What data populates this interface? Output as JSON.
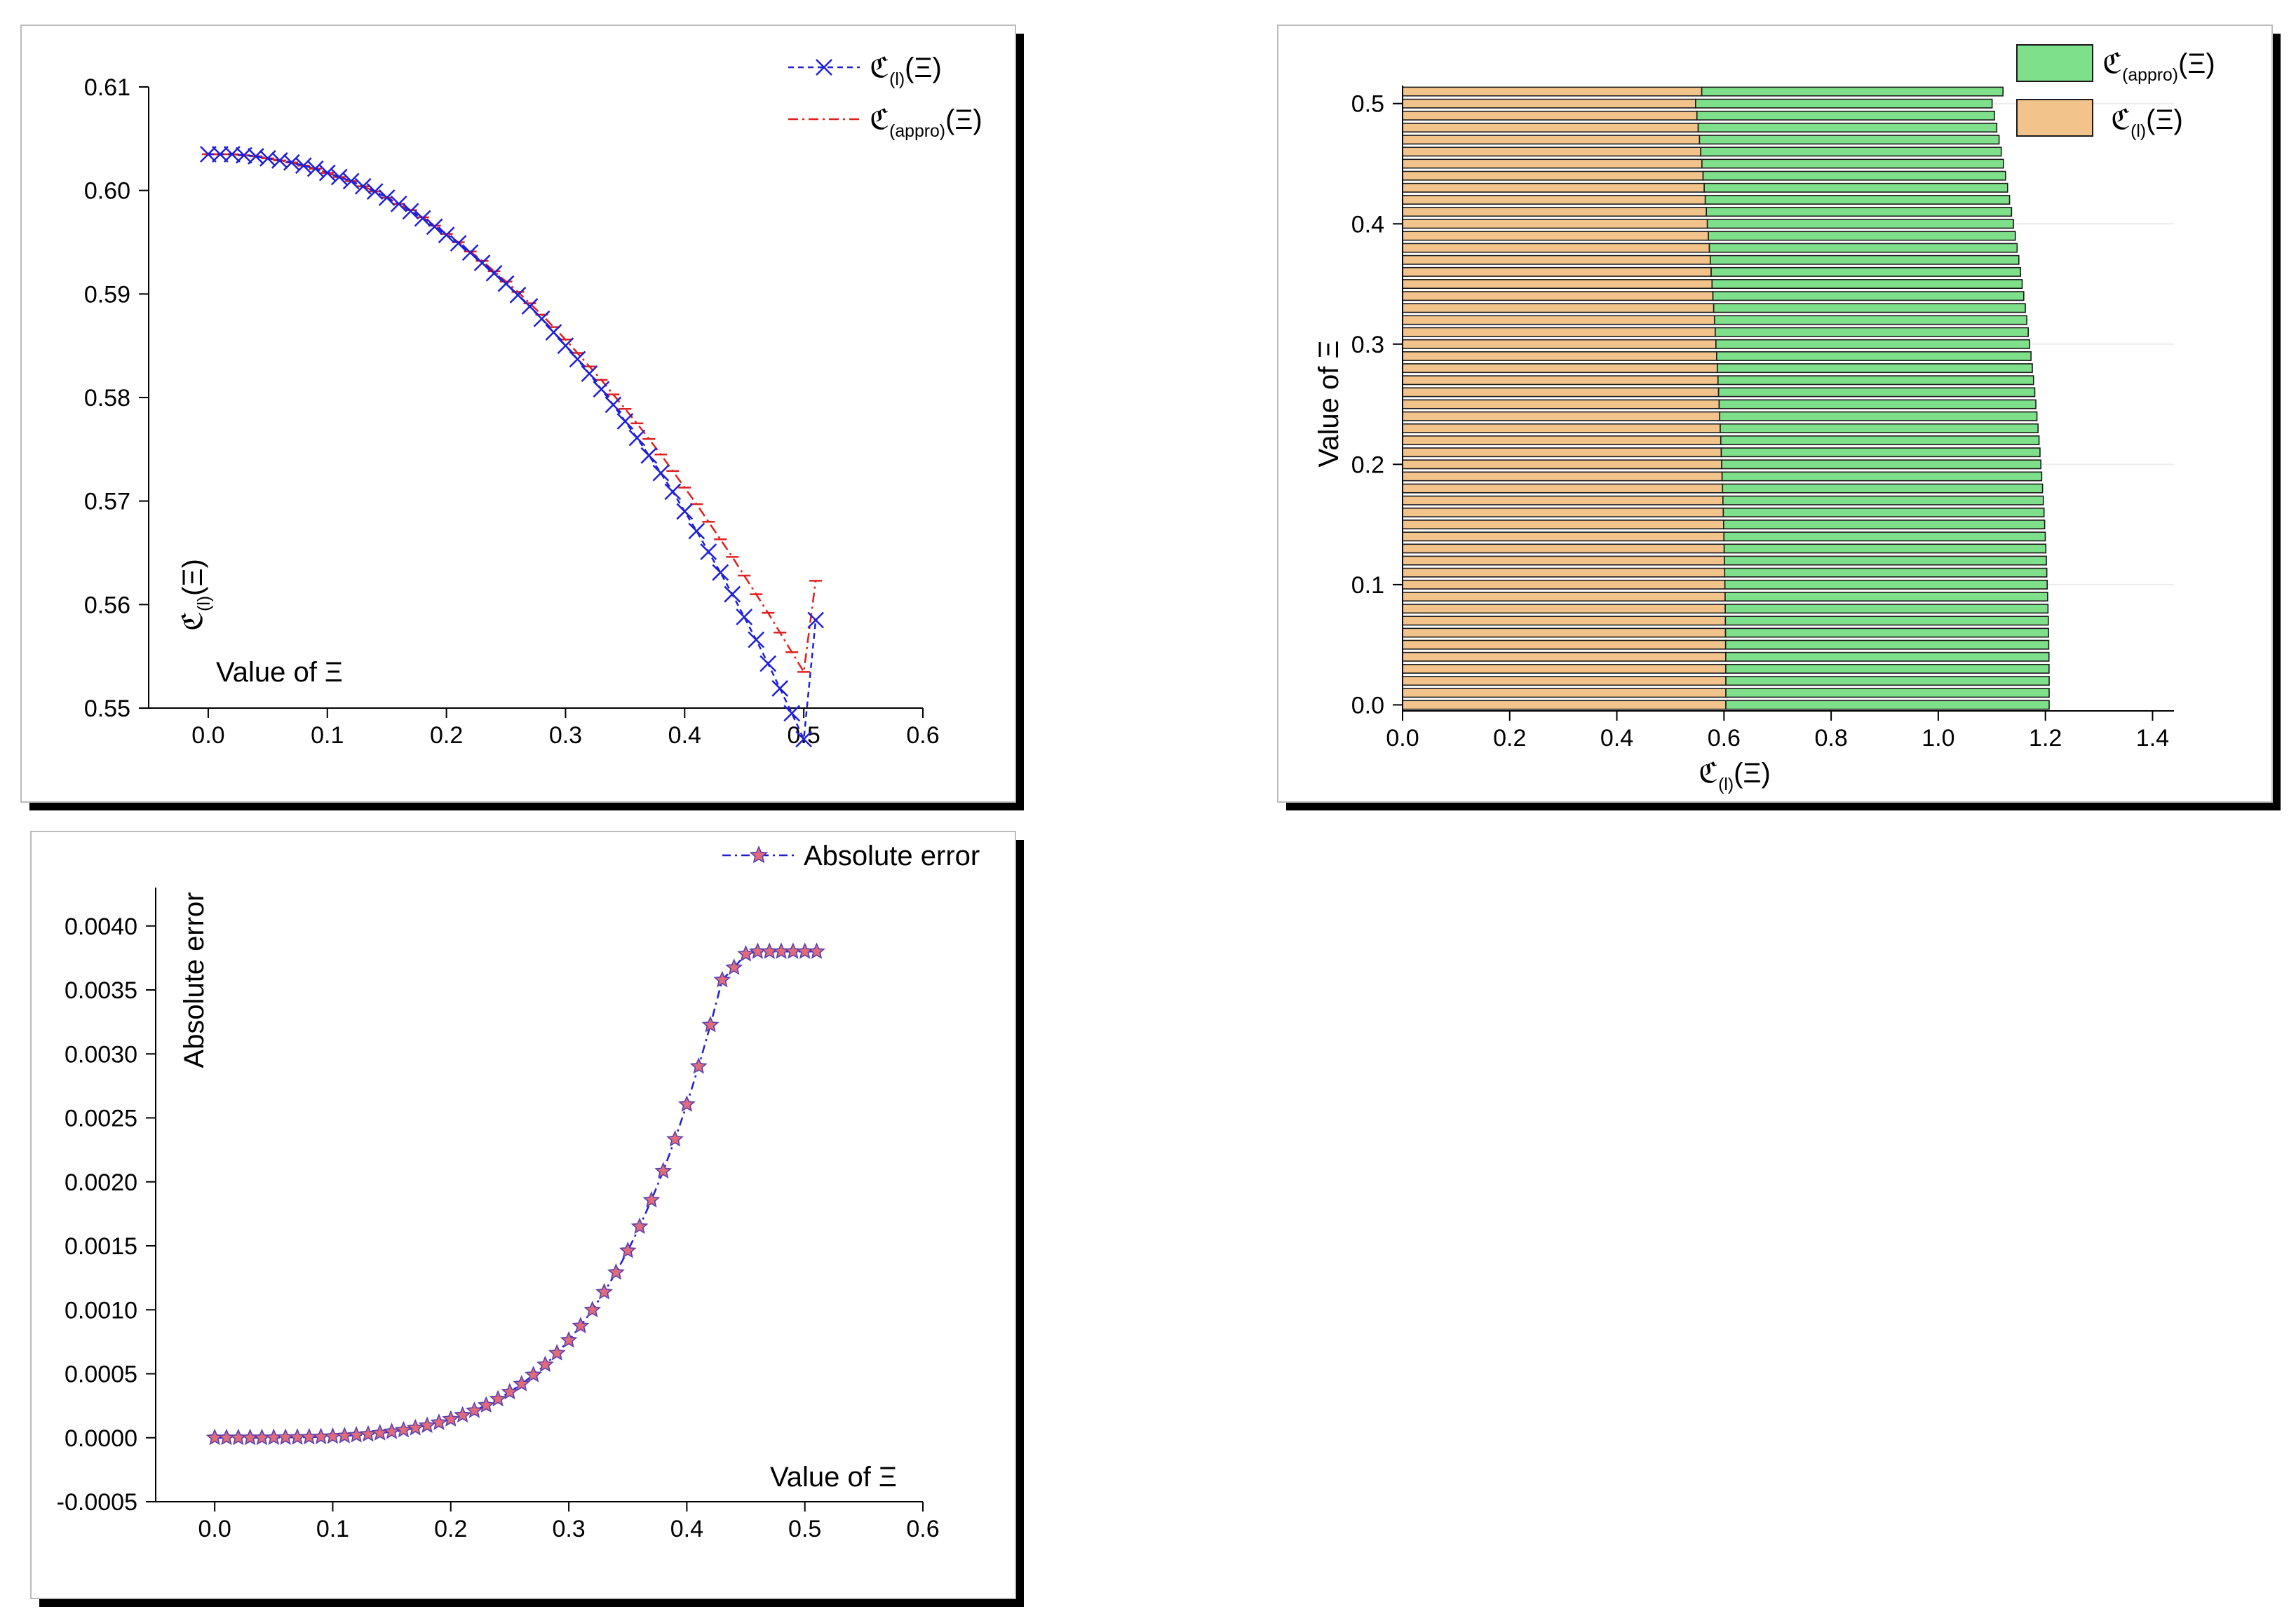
{
  "colors": {
    "series_l": "#1f1fd6",
    "series_appro": "#e0201e",
    "star_fill": "#e06b7a",
    "green": "#7ee08a",
    "orange": "#f2c48c",
    "panel_shadow": "#000000"
  },
  "chart_data": [
    {
      "type": "line",
      "title": "",
      "xlabel": "Value of Ξ",
      "ylabel": "ℭ(l)(Ξ)",
      "xlim": [
        -0.05,
        0.6
      ],
      "ylim": [
        0.55,
        0.61
      ],
      "xticks": [
        "0.0",
        "0.1",
        "0.2",
        "0.3",
        "0.4",
        "0.5",
        "0.6"
      ],
      "yticks": [
        "0.55",
        "0.56",
        "0.57",
        "0.58",
        "0.59",
        "0.60",
        "0.61"
      ],
      "legend": [
        {
          "main": "ℭ",
          "sub": "(l)",
          "tail": "(Ξ)"
        },
        {
          "main": "ℭ",
          "sub": "(appro)",
          "tail": "(Ξ)"
        }
      ],
      "series": [
        {
          "name": "ℭ(l)(Ξ)",
          "x_start": 0.0,
          "x_end": 0.51,
          "x_step": 0.01,
          "values": [
            0.6035,
            0.6035,
            0.6035,
            0.6034,
            0.6033,
            0.6031,
            0.6029,
            0.6027,
            0.6024,
            0.6021,
            0.6017,
            0.6013,
            0.6009,
            0.6004,
            0.5999,
            0.5993,
            0.5987,
            0.598,
            0.5973,
            0.5965,
            0.5957,
            0.5949,
            0.594,
            0.593,
            0.592,
            0.591,
            0.5899,
            0.5888,
            0.5876,
            0.5863,
            0.585,
            0.5837,
            0.5823,
            0.5808,
            0.5793,
            0.5777,
            0.5761,
            0.5744,
            0.5727,
            0.5709,
            0.569,
            0.5671,
            0.5651,
            0.5631,
            0.561,
            0.5588,
            0.5566,
            0.5543,
            0.5519,
            0.5495,
            0.547,
            0.5585
          ]
        },
        {
          "name": "ℭ(appro)(Ξ)",
          "x_start": 0.0,
          "x_end": 0.51,
          "x_step": 0.01,
          "values": [
            0.6035,
            0.6035,
            0.6035,
            0.6034,
            0.6033,
            0.6031,
            0.6029,
            0.6027,
            0.6024,
            0.6021,
            0.6017,
            0.6013,
            0.6009,
            0.6004,
            0.5999,
            0.5993,
            0.5987,
            0.5981,
            0.5974,
            0.5966,
            0.5958,
            0.595,
            0.5941,
            0.5932,
            0.5922,
            0.5912,
            0.5902,
            0.5891,
            0.588,
            0.5868,
            0.5856,
            0.5843,
            0.583,
            0.5817,
            0.5803,
            0.5789,
            0.5775,
            0.576,
            0.5745,
            0.5729,
            0.5713,
            0.5697,
            0.568,
            0.5663,
            0.5646,
            0.5628,
            0.561,
            0.5592,
            0.5573,
            0.5554,
            0.5535,
            0.5623
          ]
        }
      ]
    },
    {
      "type": "bar",
      "orientation": "horizontal",
      "title": "",
      "xlabel": "ℭ(l)(Ξ)",
      "ylabel": "Value of Ξ",
      "xlim": [
        0.0,
        1.44
      ],
      "ylim": [
        -0.005,
        0.515
      ],
      "xticks": [
        "0.0",
        "0.2",
        "0.4",
        "0.6",
        "0.8",
        "1.0",
        "1.2",
        "1.4"
      ],
      "yticks": [
        "0.0",
        "0.1",
        "0.2",
        "0.3",
        "0.4",
        "0.5"
      ],
      "stacked": true,
      "legend": [
        {
          "main": "ℭ",
          "sub": "(appro)",
          "tail": "(Ξ)"
        },
        {
          "main": "ℭ",
          "sub": "(l)",
          "tail": "(Ξ)"
        }
      ],
      "categories_start": 0.0,
      "categories_end": 0.51,
      "categories_step": 0.01,
      "series": [
        {
          "name": "ℭ(l)(Ξ)",
          "source": "chart_data.0.series.0"
        },
        {
          "name": "ℭ(appro)(Ξ)",
          "source": "chart_data.0.series.1"
        }
      ]
    },
    {
      "type": "line",
      "title": "",
      "xlabel": "Value of Ξ",
      "ylabel": "Absolute error",
      "xlim": [
        -0.05,
        0.6
      ],
      "ylim": [
        -0.0005,
        0.0043
      ],
      "xticks": [
        "0.0",
        "0.1",
        "0.2",
        "0.3",
        "0.4",
        "0.5",
        "0.6"
      ],
      "yticks": [
        "-0.0005",
        "0.0000",
        "0.0005",
        "0.0010",
        "0.0015",
        "0.0020",
        "0.0025",
        "0.0030",
        "0.0035",
        "0.0040"
      ],
      "legend": [
        {
          "main": "Absolute error"
        }
      ],
      "series": [
        {
          "name": "Absolute error",
          "x_start": 0.0,
          "x_end": 0.51,
          "x_step": 0.01,
          "values": [
            0.0,
            0.0,
            0.0,
            0.0,
            0.0,
            1e-06,
            2e-06,
            3e-06,
            5e-06,
            7e-06,
            1e-05,
            1.4e-05,
            2e-05,
            2.7e-05,
            3.6e-05,
            4.7e-05,
            6e-05,
            7.6e-05,
            9.5e-05,
            0.000118,
            0.000145,
            0.000176,
            0.000212,
            0.000254,
            0.000302,
            0.000357,
            0.00042,
            0.000491,
            0.000571,
            0.000661,
            0.000762,
            0.000874,
            0.000999,
            0.001138,
            0.001292,
            0.001462,
            0.00165,
            0.001857,
            0.002084,
            0.002333,
            0.002605,
            0.002902,
            0.003226,
            0.003578,
            0.003675,
            0.00378,
            0.0038,
            0.0038,
            0.0038,
            0.0038,
            0.0038,
            0.0038
          ]
        }
      ]
    }
  ]
}
